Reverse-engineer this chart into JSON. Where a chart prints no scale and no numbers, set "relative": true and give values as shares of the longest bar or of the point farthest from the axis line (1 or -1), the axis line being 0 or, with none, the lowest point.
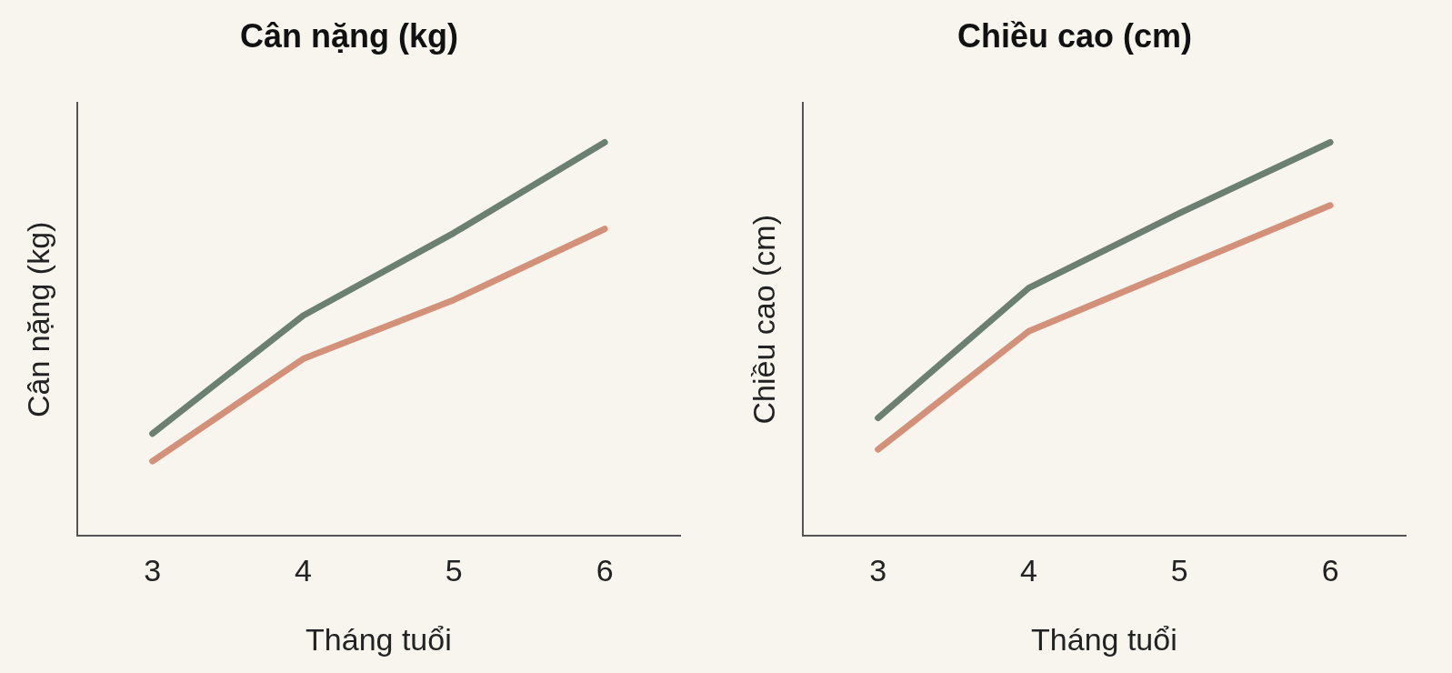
{
  "chart_data": [
    {
      "type": "line",
      "title": "Cân nặng (kg)",
      "xlabel": "Tháng tuổi",
      "ylabel": "Cân nặng (kg)",
      "categories": [
        "3",
        "4",
        "5",
        "6"
      ],
      "relative": true,
      "series": [
        {
          "color": "#6b8070",
          "values": [
            0.26,
            0.56,
            0.77,
            1
          ]
        },
        {
          "color": "#d4917a",
          "values": [
            0.19,
            0.45,
            0.6,
            0.78
          ]
        }
      ]
    },
    {
      "type": "line",
      "title": "Chiều cao (cm)",
      "xlabel": "Tháng tuổi",
      "ylabel": "Chiều cao (cm)",
      "categories": [
        "3",
        "4",
        "5",
        "6"
      ],
      "relative": true,
      "series": [
        {
          "color": "#6b8070",
          "values": [
            0.3,
            0.63,
            0.82,
            1
          ]
        },
        {
          "color": "#d4917a",
          "values": [
            0.22,
            0.52,
            0.68,
            0.84
          ]
        }
      ]
    }
  ]
}
